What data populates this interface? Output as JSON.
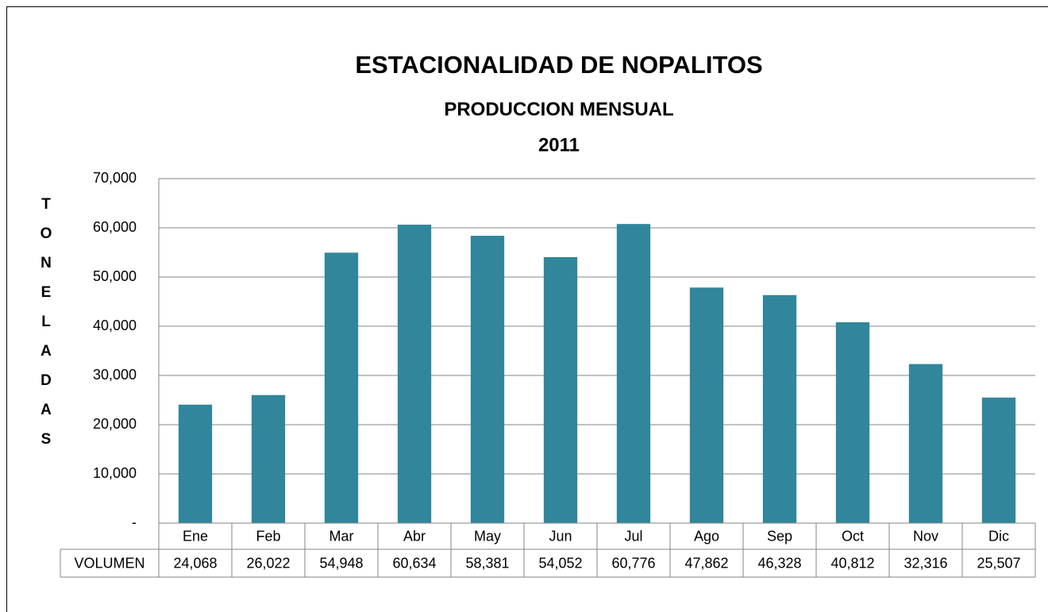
{
  "chart_data": {
    "type": "bar",
    "title": "ESTACIONALIDAD DE NOPALITOS",
    "subtitle": [
      "PRODUCCION MENSUAL",
      "2011"
    ],
    "y_label": "TONELADAS",
    "categories": [
      "Ene",
      "Feb",
      "Mar",
      "Abr",
      "May",
      "Jun",
      "Jul",
      "Ago",
      "Sep",
      "Oct",
      "Nov",
      "Dic"
    ],
    "series": [
      {
        "name": "VOLUMEN",
        "color": "#31869b",
        "values": [
          24068,
          26022,
          54948,
          60634,
          58381,
          54052,
          60776,
          47862,
          46328,
          40812,
          32316,
          25507
        ],
        "value_labels": [
          "24,068",
          "26,022",
          "54,948",
          "60,634",
          "58,381",
          "54,052",
          "60,776",
          "47,862",
          "46,328",
          "40,812",
          "32,316",
          "25,507"
        ]
      }
    ],
    "ylim": [
      0,
      70000
    ],
    "yticks": [
      {
        "value": 0,
        "label": "-"
      },
      {
        "value": 10000,
        "label": "10,000"
      },
      {
        "value": 20000,
        "label": "20,000"
      },
      {
        "value": 30000,
        "label": "30,000"
      },
      {
        "value": 40000,
        "label": "40,000"
      },
      {
        "value": 50000,
        "label": "50,000"
      },
      {
        "value": 60000,
        "label": "60,000"
      },
      {
        "value": 70000,
        "label": "70,000"
      }
    ],
    "grid": true
  }
}
